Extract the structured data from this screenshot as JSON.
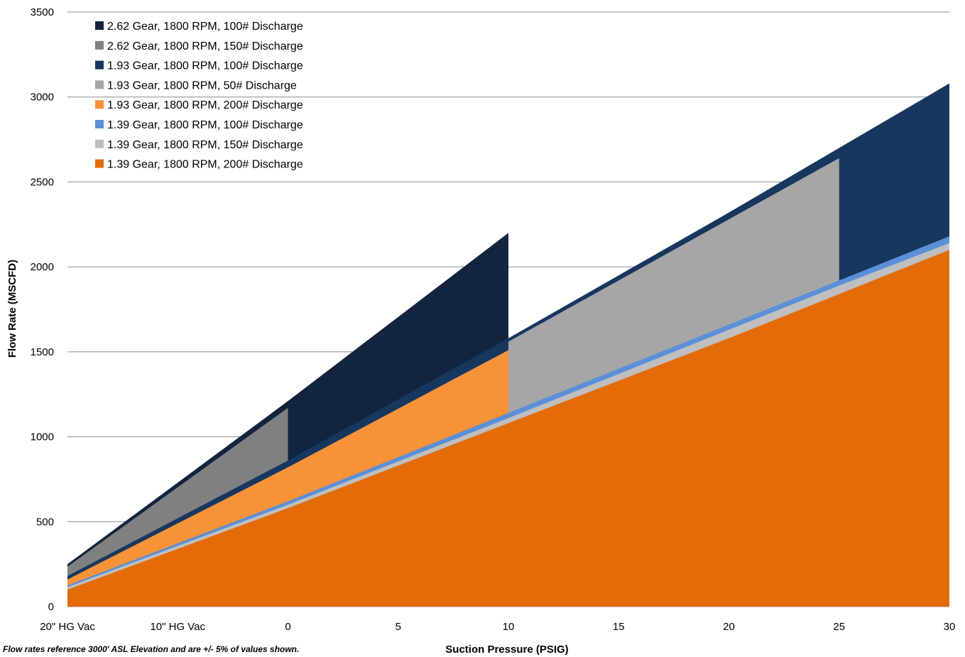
{
  "chart_data": {
    "type": "area",
    "xlabel": "Suction Pressure (PSIG)",
    "ylabel": "Flow Rate (MSCFD)",
    "ylim": [
      0,
      3500
    ],
    "yticks": [
      0,
      500,
      1000,
      1500,
      2000,
      2500,
      3000,
      3500
    ],
    "x_categories": [
      "20\" HG Vac",
      "10\" HG Vac",
      "0",
      "5",
      "10",
      "15",
      "20",
      "25",
      "30"
    ],
    "x_values": [
      -10,
      -5,
      0,
      5,
      10,
      15,
      20,
      25,
      30
    ],
    "grid": "horizontal",
    "legend_position": "top-left",
    "series": [
      {
        "name": "2.62 Gear, 1800 RPM, 100# Discharge",
        "color": "#13243e",
        "points": [
          [
            -10,
            250
          ],
          [
            0,
            1210
          ],
          [
            10,
            2200
          ]
        ]
      },
      {
        "name": "2.62 Gear, 1800 RPM, 150# Discharge",
        "color": "#808080",
        "points": [
          [
            -10,
            235
          ],
          [
            0,
            1170
          ]
        ]
      },
      {
        "name": "1.93 Gear, 1800 RPM, 100# Discharge",
        "color": "#17375e",
        "points": [
          [
            -10,
            180
          ],
          [
            0,
            860
          ],
          [
            10,
            1580
          ],
          [
            20,
            2320
          ],
          [
            25,
            2700
          ],
          [
            30,
            3080
          ]
        ]
      },
      {
        "name": "1.93 Gear, 1800 RPM, 50# Discharge",
        "color": "#a6a6a6",
        "points": [
          [
            10,
            1560
          ],
          [
            25,
            2640
          ]
        ]
      },
      {
        "name": "1.93 Gear, 1800 RPM, 200# Discharge",
        "color": "#f79238",
        "points": [
          [
            -10,
            160
          ],
          [
            0,
            820
          ],
          [
            10,
            1510
          ]
        ]
      },
      {
        "name": "1.39 Gear, 1800 RPM, 100# Discharge",
        "color": "#5b8fd6",
        "points": [
          [
            -10,
            125
          ],
          [
            0,
            620
          ],
          [
            10,
            1140
          ],
          [
            20,
            1660
          ],
          [
            25,
            1920
          ],
          [
            30,
            2180
          ]
        ]
      },
      {
        "name": "1.39 Gear, 1800 RPM, 150# Discharge",
        "color": "#bfbfbf",
        "points": [
          [
            -10,
            115
          ],
          [
            0,
            600
          ],
          [
            10,
            1110
          ],
          [
            20,
            1630
          ],
          [
            25,
            1890
          ],
          [
            30,
            2140
          ]
        ]
      },
      {
        "name": "1.39 Gear, 1800 RPM, 200# Discharge",
        "color": "#e36c09",
        "points": [
          [
            -10,
            100
          ],
          [
            0,
            580
          ],
          [
            10,
            1080
          ],
          [
            20,
            1580
          ],
          [
            25,
            1840
          ],
          [
            30,
            2100
          ]
        ]
      }
    ]
  },
  "footnote": "Flow rates reference 3000' ASL Elevation and are +/- 5% of values shown."
}
